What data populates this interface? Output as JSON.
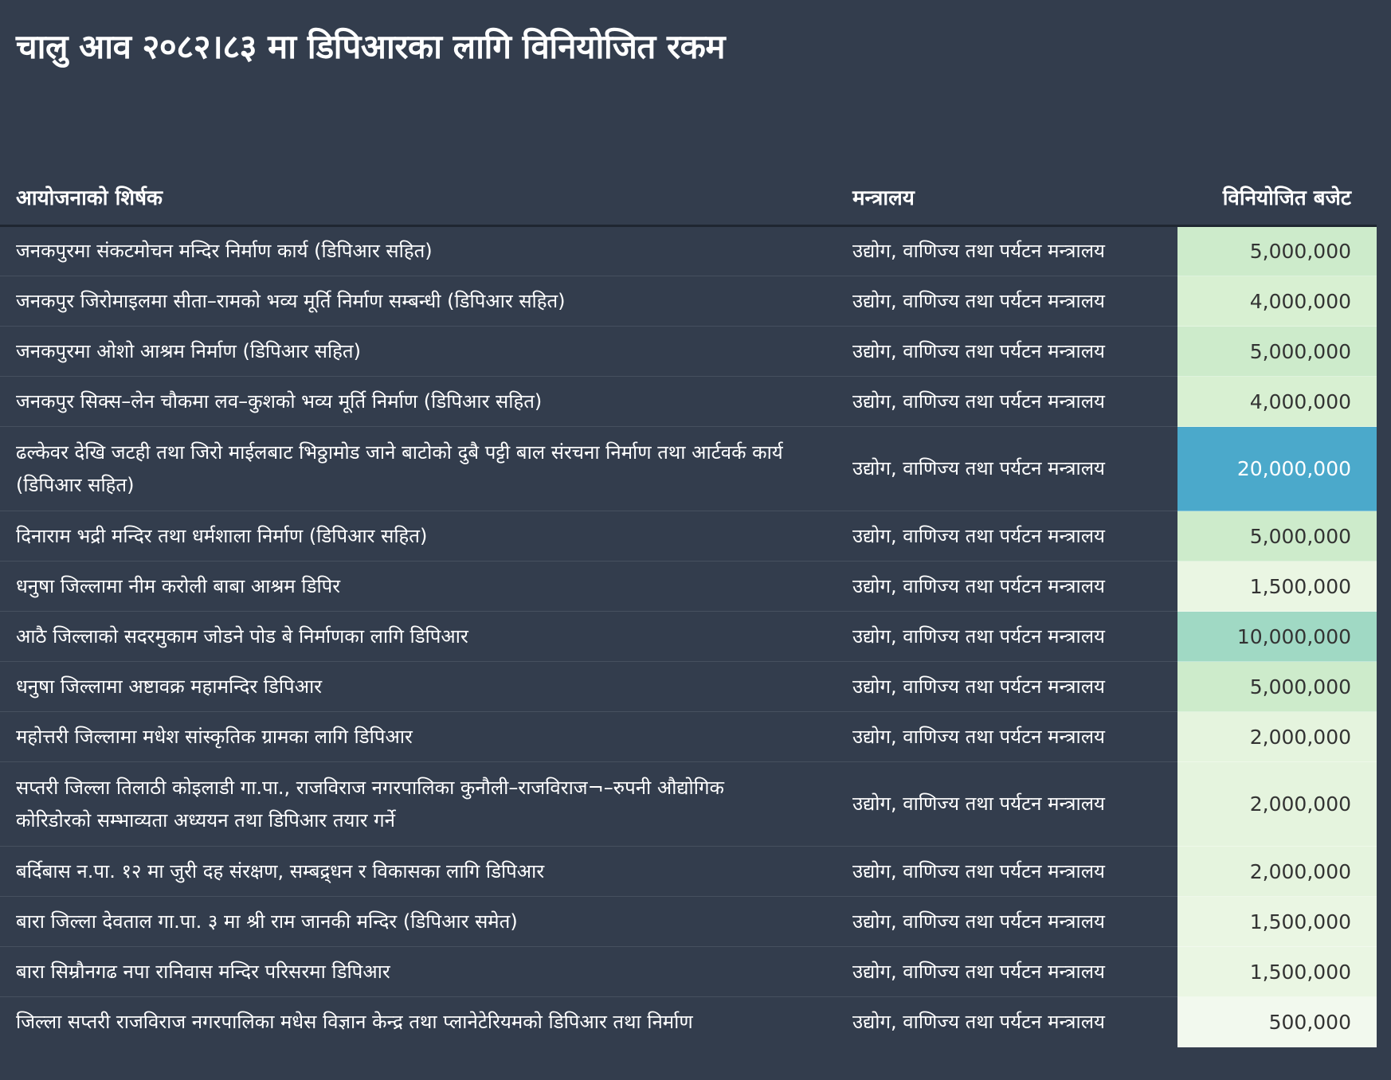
{
  "title": "चालु आव २०८२।८३ मा डिपिआरका लागि विनियोजित रकम",
  "table": {
    "headers": {
      "project": "आयोजनाको शिर्षक",
      "ministry": "मन्त्रालय",
      "budget": "विनियोजित बजेट"
    },
    "rows": [
      {
        "project": "जनकपुरमा संकटमोचन मन्दिर निर्माण कार्य (डिपिआर सहित)",
        "ministry": "उद्योग, वाणिज्य तथा पर्यटन मन्त्रालय",
        "budget": "5,000,000",
        "value": 5000000,
        "color": "#cdebcb"
      },
      {
        "project": "जनकपुर जिरोमाइलमा सीता–रामको भव्य मूर्ति निर्माण सम्बन्धी (डिपिआर सहित)",
        "ministry": "उद्योग, वाणिज्य तथा पर्यटन मन्त्रालय",
        "budget": "4,000,000",
        "value": 4000000,
        "color": "#d8f0d2"
      },
      {
        "project": "जनकपुरमा ओशो आश्रम निर्माण (डिपिआर सहित)",
        "ministry": "उद्योग, वाणिज्य तथा पर्यटन मन्त्रालय",
        "budget": "5,000,000",
        "value": 5000000,
        "color": "#cdebcb"
      },
      {
        "project": "जनकपुर सिक्स–लेन चौकमा लव–कुशको भव्य मूर्ति निर्माण (डिपिआर सहित)",
        "ministry": "उद्योग, वाणिज्य तथा पर्यटन मन्त्रालय",
        "budget": "4,000,000",
        "value": 4000000,
        "color": "#d8f0d2"
      },
      {
        "project": "ढल्केवर देखि जटही तथा जिरो माईलबाट भिठ्ठामोड जाने बाटोको दुबै पट्टी बाल संरचना निर्माण तथा आर्टवर्क कार्य (डिपिआर सहित)",
        "ministry": "उद्योग, वाणिज्य तथा पर्यटन मन्त्रालय",
        "budget": "20,000,000",
        "value": 20000000,
        "color": "#4ba9cb",
        "tall": true
      },
      {
        "project": "दिनाराम भद्री मन्दिर तथा धर्मशाला निर्माण (डिपिआर सहित)",
        "ministry": "उद्योग, वाणिज्य तथा पर्यटन मन्त्रालय",
        "budget": "5,000,000",
        "value": 5000000,
        "color": "#cdebcb"
      },
      {
        "project": "धनुषा जिल्लामा नीम करोली बाबा आश्रम डिपिर",
        "ministry": "उद्योग, वाणिज्य तथा पर्यटन मन्त्रालय",
        "budget": "1,500,000",
        "value": 1500000,
        "color": "#eaf6e3"
      },
      {
        "project": "आठै जिल्लाको सदरमुकाम जोडने पोड बे निर्माणका लागि डिपिआर",
        "ministry": "उद्योग, वाणिज्य तथा पर्यटन मन्त्रालय",
        "budget": "10,000,000",
        "value": 10000000,
        "color": "#a0d9c4"
      },
      {
        "project": "धनुषा जिल्लामा अष्टावक्र महामन्दिर डिपिआर",
        "ministry": "उद्योग, वाणिज्य तथा पर्यटन मन्त्रालय",
        "budget": "5,000,000",
        "value": 5000000,
        "color": "#cdebcb"
      },
      {
        "project": "महोत्तरी जिल्लामा मधेश सांस्कृतिक ग्रामका लागि डिपिआर",
        "ministry": "उद्योग, वाणिज्य तथा पर्यटन मन्त्रालय",
        "budget": "2,000,000",
        "value": 2000000,
        "color": "#e5f4de"
      },
      {
        "project": "सप्तरी जिल्ला तिलाठी कोइलाडी गा.पा., राजविराज नगरपालिका कुनौली–राजविराज¬–रुपनी औद्योगिक कोरिडोरको सम्भाव्यता अध्ययन तथा डिपिआर तयार गर्ने",
        "ministry": "उद्योग, वाणिज्य तथा पर्यटन मन्त्रालय",
        "budget": "2,000,000",
        "value": 2000000,
        "color": "#e5f4de",
        "tall": true
      },
      {
        "project": "बर्दिबास न.पा. १२ मा जुरी दह संरक्षण, सम्बद्र्धन र विकासका लागि डिपिआर",
        "ministry": "उद्योग, वाणिज्य तथा पर्यटन मन्त्रालय",
        "budget": "2,000,000",
        "value": 2000000,
        "color": "#e5f4de"
      },
      {
        "project": "बारा जिल्ला देवताल गा.पा. ३ मा श्री राम जानकी मन्दिर (डिपिआर समेत)",
        "ministry": "उद्योग, वाणिज्य तथा पर्यटन मन्त्रालय",
        "budget": "1,500,000",
        "value": 1500000,
        "color": "#eaf6e3"
      },
      {
        "project": "बारा सिम्रौनगढ नपा रानिवास मन्दिर परिसरमा डिपिआर",
        "ministry": "उद्योग, वाणिज्य तथा पर्यटन मन्त्रालय",
        "budget": "1,500,000",
        "value": 1500000,
        "color": "#eaf6e3"
      },
      {
        "project": "जिल्ला सप्तरी राजविराज नगरपालिका मधेस विज्ञान केन्द्र तथा प्लानेटेरियमको डिपिआर तथा निर्माण",
        "ministry": "उद्योग, वाणिज्य तथा पर्यटन मन्त्रालय",
        "budget": "500,000",
        "value": 500000,
        "color": "#f2f9ee"
      }
    ]
  }
}
